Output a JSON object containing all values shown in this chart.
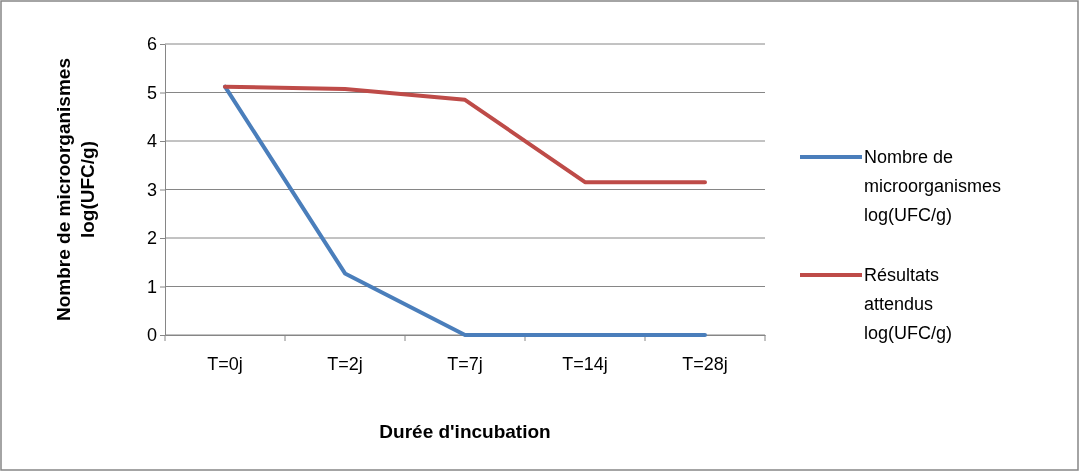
{
  "chart_data": {
    "type": "line",
    "xlabel": "Durée d'incubation",
    "ylabel": "Nombre de microorganismes log(UFC/g)",
    "categories": [
      "T=0j",
      "T=2j",
      "T=7j",
      "T=14j",
      "T=28j"
    ],
    "series": [
      {
        "name": "Nombre de microorganismes log(UFC/g)",
        "color": "#4a7ebb",
        "values": [
          5.12,
          1.27,
          0,
          0,
          0
        ]
      },
      {
        "name": "Résultats attendus log(UFC/g)",
        "color": "#be4b48",
        "values": [
          5.12,
          5.07,
          4.85,
          3.15,
          3.15
        ]
      }
    ],
    "ylim": [
      0,
      6
    ],
    "yticks": [
      0,
      1,
      2,
      3,
      4,
      5,
      6
    ],
    "grid": "y",
    "legend": "right",
    "marker": "none",
    "line_style": "solid"
  }
}
